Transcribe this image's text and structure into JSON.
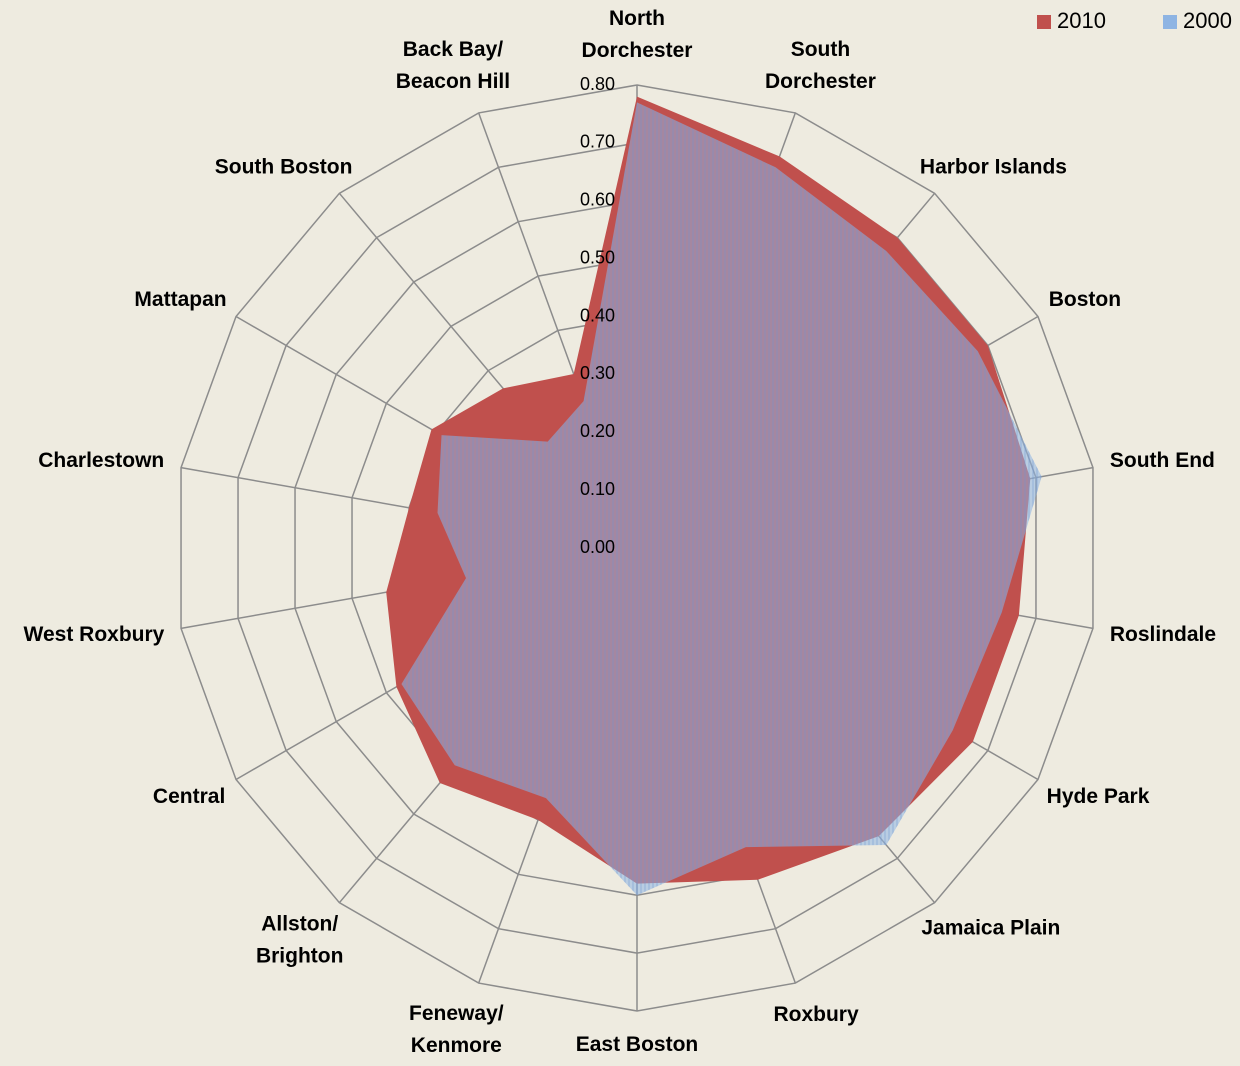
{
  "chart_data": {
    "type": "radar",
    "categories": [
      "North\nDorchester",
      "South\nDorchester",
      "Harbor Islands",
      "Boston",
      "South End",
      "Roslindale",
      "Hyde Park",
      "Jamaica Plain",
      "Roxbury",
      "East Boston",
      "Feneway/\nKenmore",
      "Allston/\nBrighton",
      "Central",
      "West Roxbury",
      "Charlestown",
      "Mattapan",
      "South Boston",
      "Back Bay/\nBeacon Hill"
    ],
    "series": [
      {
        "name": "2010",
        "color": "#c0504d",
        "values": [
          0.78,
          0.72,
          0.7,
          0.7,
          0.69,
          0.67,
          0.67,
          0.65,
          0.61,
          0.58,
          0.5,
          0.53,
          0.48,
          0.44,
          0.4,
          0.41,
          0.36,
          0.32
        ]
      },
      {
        "name": "2000",
        "color": "#8eb4e3",
        "values": [
          0.77,
          0.7,
          0.67,
          0.68,
          0.71,
          0.64,
          0.63,
          0.67,
          0.55,
          0.6,
          0.46,
          0.49,
          0.47,
          0.3,
          0.35,
          0.39,
          0.24,
          0.27
        ]
      }
    ],
    "ylim": [
      0,
      0.8
    ],
    "yticks": [
      {
        "value": 0,
        "label": "0.00"
      },
      {
        "value": 0.1,
        "label": "0.10"
      },
      {
        "value": 0.2,
        "label": "0.20"
      },
      {
        "value": 0.3,
        "label": "0.30"
      },
      {
        "value": 0.4,
        "label": "0.40"
      },
      {
        "value": 0.5,
        "label": "0.50"
      },
      {
        "value": 0.6,
        "label": "0.60"
      },
      {
        "value": 0.7,
        "label": "0.70"
      },
      {
        "value": 0.8,
        "label": "0.80"
      }
    ],
    "legend": "top-right"
  }
}
